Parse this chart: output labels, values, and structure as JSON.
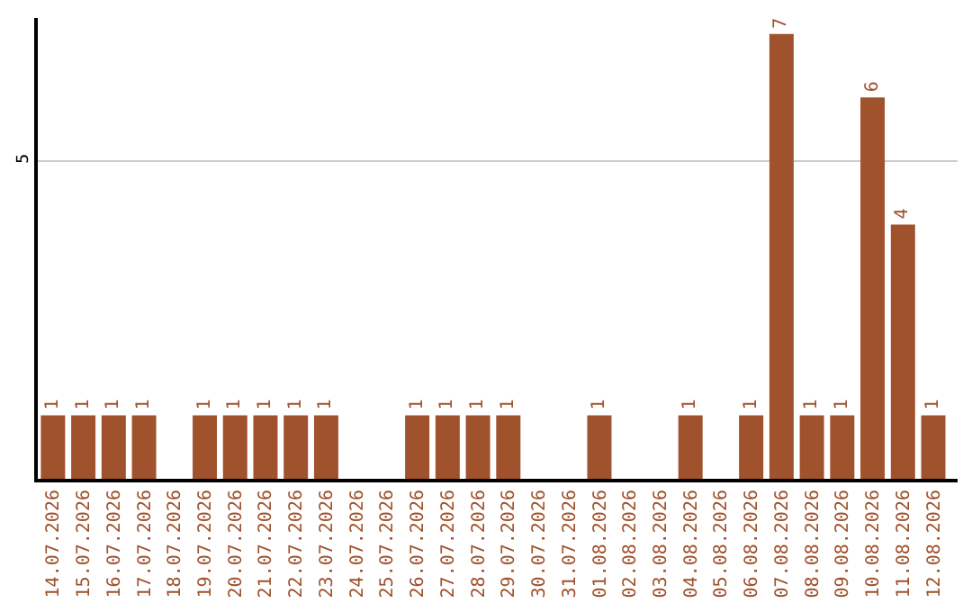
{
  "chart_data": {
    "type": "bar",
    "categories": [
      "14.07.2026",
      "15.07.2026",
      "16.07.2026",
      "17.07.2026",
      "18.07.2026",
      "19.07.2026",
      "20.07.2026",
      "21.07.2026",
      "22.07.2026",
      "23.07.2026",
      "24.07.2026",
      "25.07.2026",
      "26.07.2026",
      "27.07.2026",
      "28.07.2026",
      "29.07.2026",
      "30.07.2026",
      "31.07.2026",
      "01.08.2026",
      "02.08.2026",
      "03.08.2026",
      "04.08.2026",
      "05.08.2026",
      "06.08.2026",
      "07.08.2026",
      "08.08.2026",
      "09.08.2026",
      "10.08.2026",
      "11.08.2026",
      "12.08.2026"
    ],
    "values": [
      1,
      1,
      1,
      1,
      null,
      1,
      1,
      1,
      1,
      1,
      null,
      null,
      1,
      1,
      1,
      1,
      null,
      null,
      1,
      null,
      null,
      1,
      null,
      1,
      7,
      1,
      1,
      6,
      4,
      1
    ],
    "color": "#a0522d",
    "ylim": [
      0,
      7.25
    ],
    "yticks": [
      5
    ],
    "grid": "y",
    "data_labels": true,
    "legend": false
  }
}
